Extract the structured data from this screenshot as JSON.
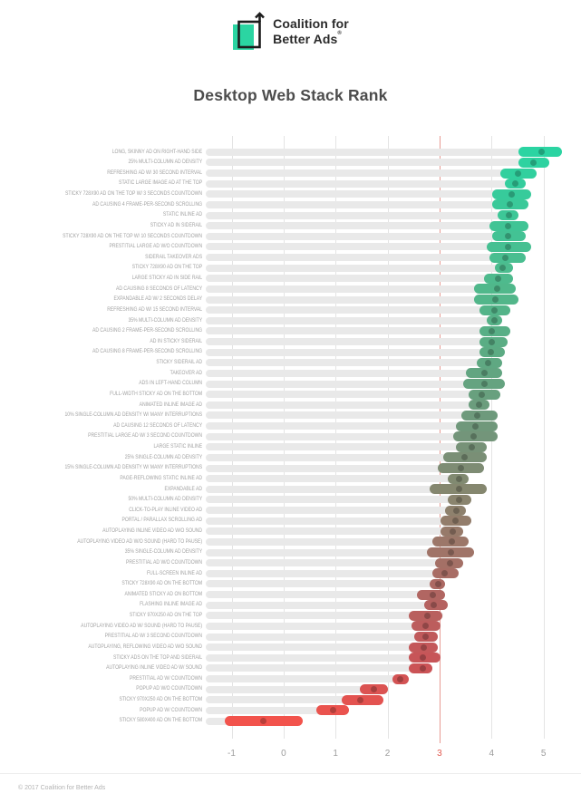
{
  "header": {
    "logo_line1": "Coalition for",
    "logo_line2": "Better Ads",
    "registered_mark": "®",
    "logo_color": "#2bd5a2"
  },
  "title": "Desktop Web Stack Rank",
  "footer": {
    "copyright": "© 2017 Coalition for Better Ads"
  },
  "chart_data": {
    "type": "bar",
    "orientation": "horizontal-range-dot",
    "title": "Desktop Web Stack Rank",
    "xlabel": "",
    "ylabel": "",
    "xlim": [
      -1.41,
      5.53
    ],
    "grid": true,
    "threshold_value": 3,
    "threshold_color": "#e79a93",
    "track_color": "#e9e9e9",
    "ticks": [
      {
        "label": "-1",
        "value": -1,
        "highlight": false
      },
      {
        "label": "0",
        "value": 0,
        "highlight": false
      },
      {
        "label": "1",
        "value": 1,
        "highlight": false
      },
      {
        "label": "2",
        "value": 2,
        "highlight": false
      },
      {
        "label": "3",
        "value": 3,
        "highlight": true
      },
      {
        "label": "4",
        "value": 4,
        "highlight": false
      },
      {
        "label": "5",
        "value": 5,
        "highlight": false
      }
    ],
    "rows": [
      {
        "label": "LONG, SKINNY AD ON RIGHT-HAND SIDE",
        "lo": 4.6,
        "hi": 5.45,
        "mean": 5.05,
        "color": "#2bd4a2"
      },
      {
        "label": "25% MULTI-COLUMN AD DENSITY",
        "lo": 4.6,
        "hi": 5.2,
        "mean": 4.9,
        "color": "#2ed2a0"
      },
      {
        "label": "REFRESHING AD W/ 30 SECOND INTERVAL",
        "lo": 4.25,
        "hi": 4.95,
        "mean": 4.6,
        "color": "#31d09e"
      },
      {
        "label": "STATIC LARGE IMAGE AD AT THE TOP",
        "lo": 4.35,
        "hi": 4.75,
        "mean": 4.55,
        "color": "#34cd9d"
      },
      {
        "label": "STICKY 728X90 AD ON THE TOP W/ 3 SECONDS COUNTDOWN",
        "lo": 4.1,
        "hi": 4.85,
        "mean": 4.47,
        "color": "#37cb9b"
      },
      {
        "label": "AD CAUSING 4 FRAME-PER-SECOND SCROLLING",
        "lo": 4.1,
        "hi": 4.8,
        "mean": 4.44,
        "color": "#3ac999"
      },
      {
        "label": "STATIC INLINE AD",
        "lo": 4.2,
        "hi": 4.6,
        "mean": 4.42,
        "color": "#3dc797"
      },
      {
        "label": "STICKY AD IN SIDERAIL",
        "lo": 4.05,
        "hi": 4.8,
        "mean": 4.4,
        "color": "#40c495"
      },
      {
        "label": "STICKY 728X90 AD ON THE TOP W/ 10 SECONDS COUNTDOWN",
        "lo": 4.1,
        "hi": 4.75,
        "mean": 4.4,
        "color": "#43c294"
      },
      {
        "label": "PRESTITIAL LARGE AD W/O COUNTDOWN",
        "lo": 4.0,
        "hi": 4.85,
        "mean": 4.4,
        "color": "#46c092"
      },
      {
        "label": "SIDERAIL TAKEOVER ADS",
        "lo": 4.05,
        "hi": 4.75,
        "mean": 4.36,
        "color": "#49be90"
      },
      {
        "label": "STICKY 728X90 AD ON THE TOP",
        "lo": 4.15,
        "hi": 4.5,
        "mean": 4.3,
        "color": "#4cbc8e"
      },
      {
        "label": "LARGE STICKY AD IN SIDE RAIL",
        "lo": 3.95,
        "hi": 4.5,
        "mean": 4.22,
        "color": "#4eba8d"
      },
      {
        "label": "AD CAUSING 8 SECONDS OF LATENCY",
        "lo": 3.75,
        "hi": 4.55,
        "mean": 4.2,
        "color": "#50b88b"
      },
      {
        "label": "EXPANDABLE AD W/ 2 SECONDS DELAY",
        "lo": 3.75,
        "hi": 4.6,
        "mean": 4.16,
        "color": "#52b68a"
      },
      {
        "label": "REFRESHING AD W/ 15 SECOND INTERVAL",
        "lo": 3.85,
        "hi": 4.45,
        "mean": 4.14,
        "color": "#54b489"
      },
      {
        "label": "35% MULTI-COLUMN AD DENSITY",
        "lo": 4.0,
        "hi": 4.3,
        "mean": 4.14,
        "color": "#56b187"
      },
      {
        "label": "AD CAUSING 2 FRAME-PER-SECOND SCROLLING",
        "lo": 3.85,
        "hi": 4.45,
        "mean": 4.1,
        "color": "#58af86"
      },
      {
        "label": "AD IN STICKY SIDERAIL",
        "lo": 3.85,
        "hi": 4.4,
        "mean": 4.1,
        "color": "#5aad84"
      },
      {
        "label": "AD CAUSING 8 FRAME-PER-SECOND SCROLLING",
        "lo": 3.85,
        "hi": 4.35,
        "mean": 4.07,
        "color": "#5cab83"
      },
      {
        "label": "STICKY SIDERAIL AD",
        "lo": 3.8,
        "hi": 4.3,
        "mean": 4.03,
        "color": "#5fa882"
      },
      {
        "label": "TAKEOVER AD",
        "lo": 3.6,
        "hi": 4.3,
        "mean": 3.96,
        "color": "#62a581"
      },
      {
        "label": "ADS IN LEFT-HAND COLUMN",
        "lo": 3.55,
        "hi": 4.35,
        "mean": 3.95,
        "color": "#65a380"
      },
      {
        "label": "FULL-WIDTH STICKY AD ON THE BOTTOM",
        "lo": 3.65,
        "hi": 4.25,
        "mean": 3.9,
        "color": "#68a07e"
      },
      {
        "label": "ANIMATED INLINE IMAGE AD",
        "lo": 3.65,
        "hi": 4.05,
        "mean": 3.85,
        "color": "#6b9d7d"
      },
      {
        "label": "10% SINGLE-COLUMN AD DENSITY W/ MANY INTERRUPTIONS",
        "lo": 3.5,
        "hi": 4.2,
        "mean": 3.82,
        "color": "#6e9a7c"
      },
      {
        "label": "AD CAUSING 12 SECONDS OF LATENCY",
        "lo": 3.4,
        "hi": 4.2,
        "mean": 3.78,
        "color": "#70987b"
      },
      {
        "label": "PRESTITIAL LARGE AD W/ 3 SECOND COUNTDOWN",
        "lo": 3.35,
        "hi": 4.2,
        "mean": 3.74,
        "color": "#73957a"
      },
      {
        "label": "LARGE STATIC INLINE",
        "lo": 3.4,
        "hi": 4.0,
        "mean": 3.7,
        "color": "#779278"
      },
      {
        "label": "25% SINGLE-COLUMN AD DENSITY",
        "lo": 3.15,
        "hi": 4.0,
        "mean": 3.57,
        "color": "#7a8f76"
      },
      {
        "label": "15% SINGLE-COLUMN AD DENSITY W/ MANY INTERRUPTIONS",
        "lo": 3.05,
        "hi": 3.95,
        "mean": 3.5,
        "color": "#7e8c74"
      },
      {
        "label": "PAGE-REFLOWING STATIC INLINE AD",
        "lo": 3.25,
        "hi": 3.65,
        "mean": 3.47,
        "color": "#818a71"
      },
      {
        "label": "EXPANDABLE AD",
        "lo": 2.9,
        "hi": 4.0,
        "mean": 3.46,
        "color": "#85876f"
      },
      {
        "label": "50% MULTI-COLUMN AD DENSITY",
        "lo": 3.25,
        "hi": 3.7,
        "mean": 3.46,
        "color": "#8a846e"
      },
      {
        "label": "CLICK-TO-PLAY INLINE VIDEO AD",
        "lo": 3.2,
        "hi": 3.6,
        "mean": 3.42,
        "color": "#8e816d"
      },
      {
        "label": "PORTAL / PARALLAX SCROLLING AD",
        "lo": 3.1,
        "hi": 3.7,
        "mean": 3.4,
        "color": "#937d6b"
      },
      {
        "label": "AUTOPLAYING INLINE VIDEO AD W/O SOUND",
        "lo": 3.1,
        "hi": 3.55,
        "mean": 3.34,
        "color": "#977a6a"
      },
      {
        "label": "AUTOPLAYING VIDEO AD W/O SOUND (HARD TO PAUSE)",
        "lo": 2.95,
        "hi": 3.65,
        "mean": 3.33,
        "color": "#9c7769"
      },
      {
        "label": "35% SINGLE-COLUMN AD DENSITY",
        "lo": 2.85,
        "hi": 3.75,
        "mean": 3.31,
        "color": "#a07468"
      },
      {
        "label": "PRESTITIAL AD W/O COUNTDOWN",
        "lo": 3.0,
        "hi": 3.55,
        "mean": 3.29,
        "color": "#a47066"
      },
      {
        "label": "FULL-SCREEN INLINE AD",
        "lo": 2.95,
        "hi": 3.45,
        "mean": 3.18,
        "color": "#a86d65"
      },
      {
        "label": "STICKY 728X90 AD ON THE BOTTOM",
        "lo": 2.9,
        "hi": 3.2,
        "mean": 3.06,
        "color": "#ac6963"
      },
      {
        "label": "ANIMATED STICKY AD ON BOTTOM",
        "lo": 2.65,
        "hi": 3.2,
        "mean": 2.95,
        "color": "#b16662"
      },
      {
        "label": "FLASHING INLINE IMAGE AD",
        "lo": 2.8,
        "hi": 3.25,
        "mean": 2.98,
        "color": "#b56260"
      },
      {
        "label": "STICKY 970X250 AD ON THE TOP",
        "lo": 2.5,
        "hi": 3.15,
        "mean": 2.86,
        "color": "#b9605e"
      },
      {
        "label": "AUTOPLAYING VIDEO AD W/ SOUND (HARD TO PAUSE)",
        "lo": 2.55,
        "hi": 3.1,
        "mean": 2.82,
        "color": "#bc5d5d"
      },
      {
        "label": "PRESTITIAL AD W/ 3 SECOND COUNTDOWN",
        "lo": 2.6,
        "hi": 3.05,
        "mean": 2.81,
        "color": "#c05a5b"
      },
      {
        "label": "AUTOPLAYING, REFLOWING VIDEO AD W/O SOUND",
        "lo": 2.5,
        "hi": 3.05,
        "mean": 2.78,
        "color": "#c4585a"
      },
      {
        "label": "STICKY ADS ON THE TOP AND SIDERAIL",
        "lo": 2.5,
        "hi": 3.1,
        "mean": 2.77,
        "color": "#c75558"
      },
      {
        "label": "AUTOPLAYING INLINE VIDEO AD W/ SOUND",
        "lo": 2.5,
        "hi": 2.95,
        "mean": 2.76,
        "color": "#cb5356"
      },
      {
        "label": "PRESTITIAL AD W/ COUNTDOWN",
        "lo": 2.18,
        "hi": 2.5,
        "mean": 2.33,
        "color": "#d35354"
      },
      {
        "label": "POPUP AD W/O COUNTDOWN",
        "lo": 1.55,
        "hi": 2.1,
        "mean": 1.82,
        "color": "#db5352"
      },
      {
        "label": "STICKY 970X250 AD ON THE BOTTOM",
        "lo": 1.2,
        "hi": 2.0,
        "mean": 1.57,
        "color": "#e35350"
      },
      {
        "label": "POPUP AD W/ COUNTDOWN",
        "lo": 0.72,
        "hi": 1.35,
        "mean": 1.04,
        "color": "#ea534e"
      },
      {
        "label": "STICKY 580X400 AD ON THE BOTTOM",
        "lo": -1.05,
        "hi": 0.45,
        "mean": -0.3,
        "color": "#f2534c"
      }
    ]
  }
}
